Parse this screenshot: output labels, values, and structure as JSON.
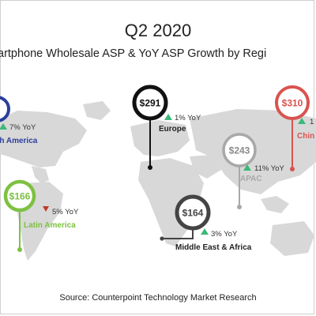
{
  "header": {
    "title": "Q2 2020",
    "subtitle": "artphone Wholesale ASP & YoY ASP Growth by Regi"
  },
  "footer": {
    "source": "Source: Counterpoint Technology Market Research"
  },
  "colors": {
    "up": "#3cb878",
    "down": "#c0392b",
    "north_america": "#2b3f9c",
    "europe": "#111111",
    "china": "#d9534f",
    "apac": "#a8a8a8",
    "latin_america": "#7dc142",
    "mea": "#444444",
    "map": "#d8d8d8"
  },
  "chart_data": {
    "type": "bubble-map",
    "title": "Q2 2020",
    "subtitle": "artphone Wholesale ASP & YoY ASP Growth by Regi",
    "source": "Source: Counterpoint Technology Market Research",
    "regions": [
      {
        "name": "orth America",
        "asp_label": "",
        "yoy_label": "7% YoY",
        "yoy_direction": "up",
        "color": "#2b3f9c"
      },
      {
        "name": "Europe",
        "asp_label": "$291",
        "asp": 291,
        "yoy_label": "1% YoY",
        "yoy": 1,
        "yoy_direction": "up",
        "color": "#111111"
      },
      {
        "name": "Chin",
        "asp_label": "$310",
        "asp": 310,
        "yoy_label": "1",
        "yoy_direction": "up",
        "color": "#d9534f"
      },
      {
        "name": "APAC",
        "asp_label": "$243",
        "asp": 243,
        "yoy_label": "11% YoY",
        "yoy": 11,
        "yoy_direction": "up",
        "color": "#a8a8a8"
      },
      {
        "name": "Latin America",
        "asp_label": "$166",
        "asp": 166,
        "yoy_label": "5% YoY",
        "yoy": -5,
        "yoy_direction": "down",
        "color": "#7dc142"
      },
      {
        "name": "Middle East & Africa",
        "asp_label": "$164",
        "asp": 164,
        "yoy_label": "3% YoY",
        "yoy": 3,
        "yoy_direction": "up",
        "color": "#444444"
      }
    ]
  }
}
